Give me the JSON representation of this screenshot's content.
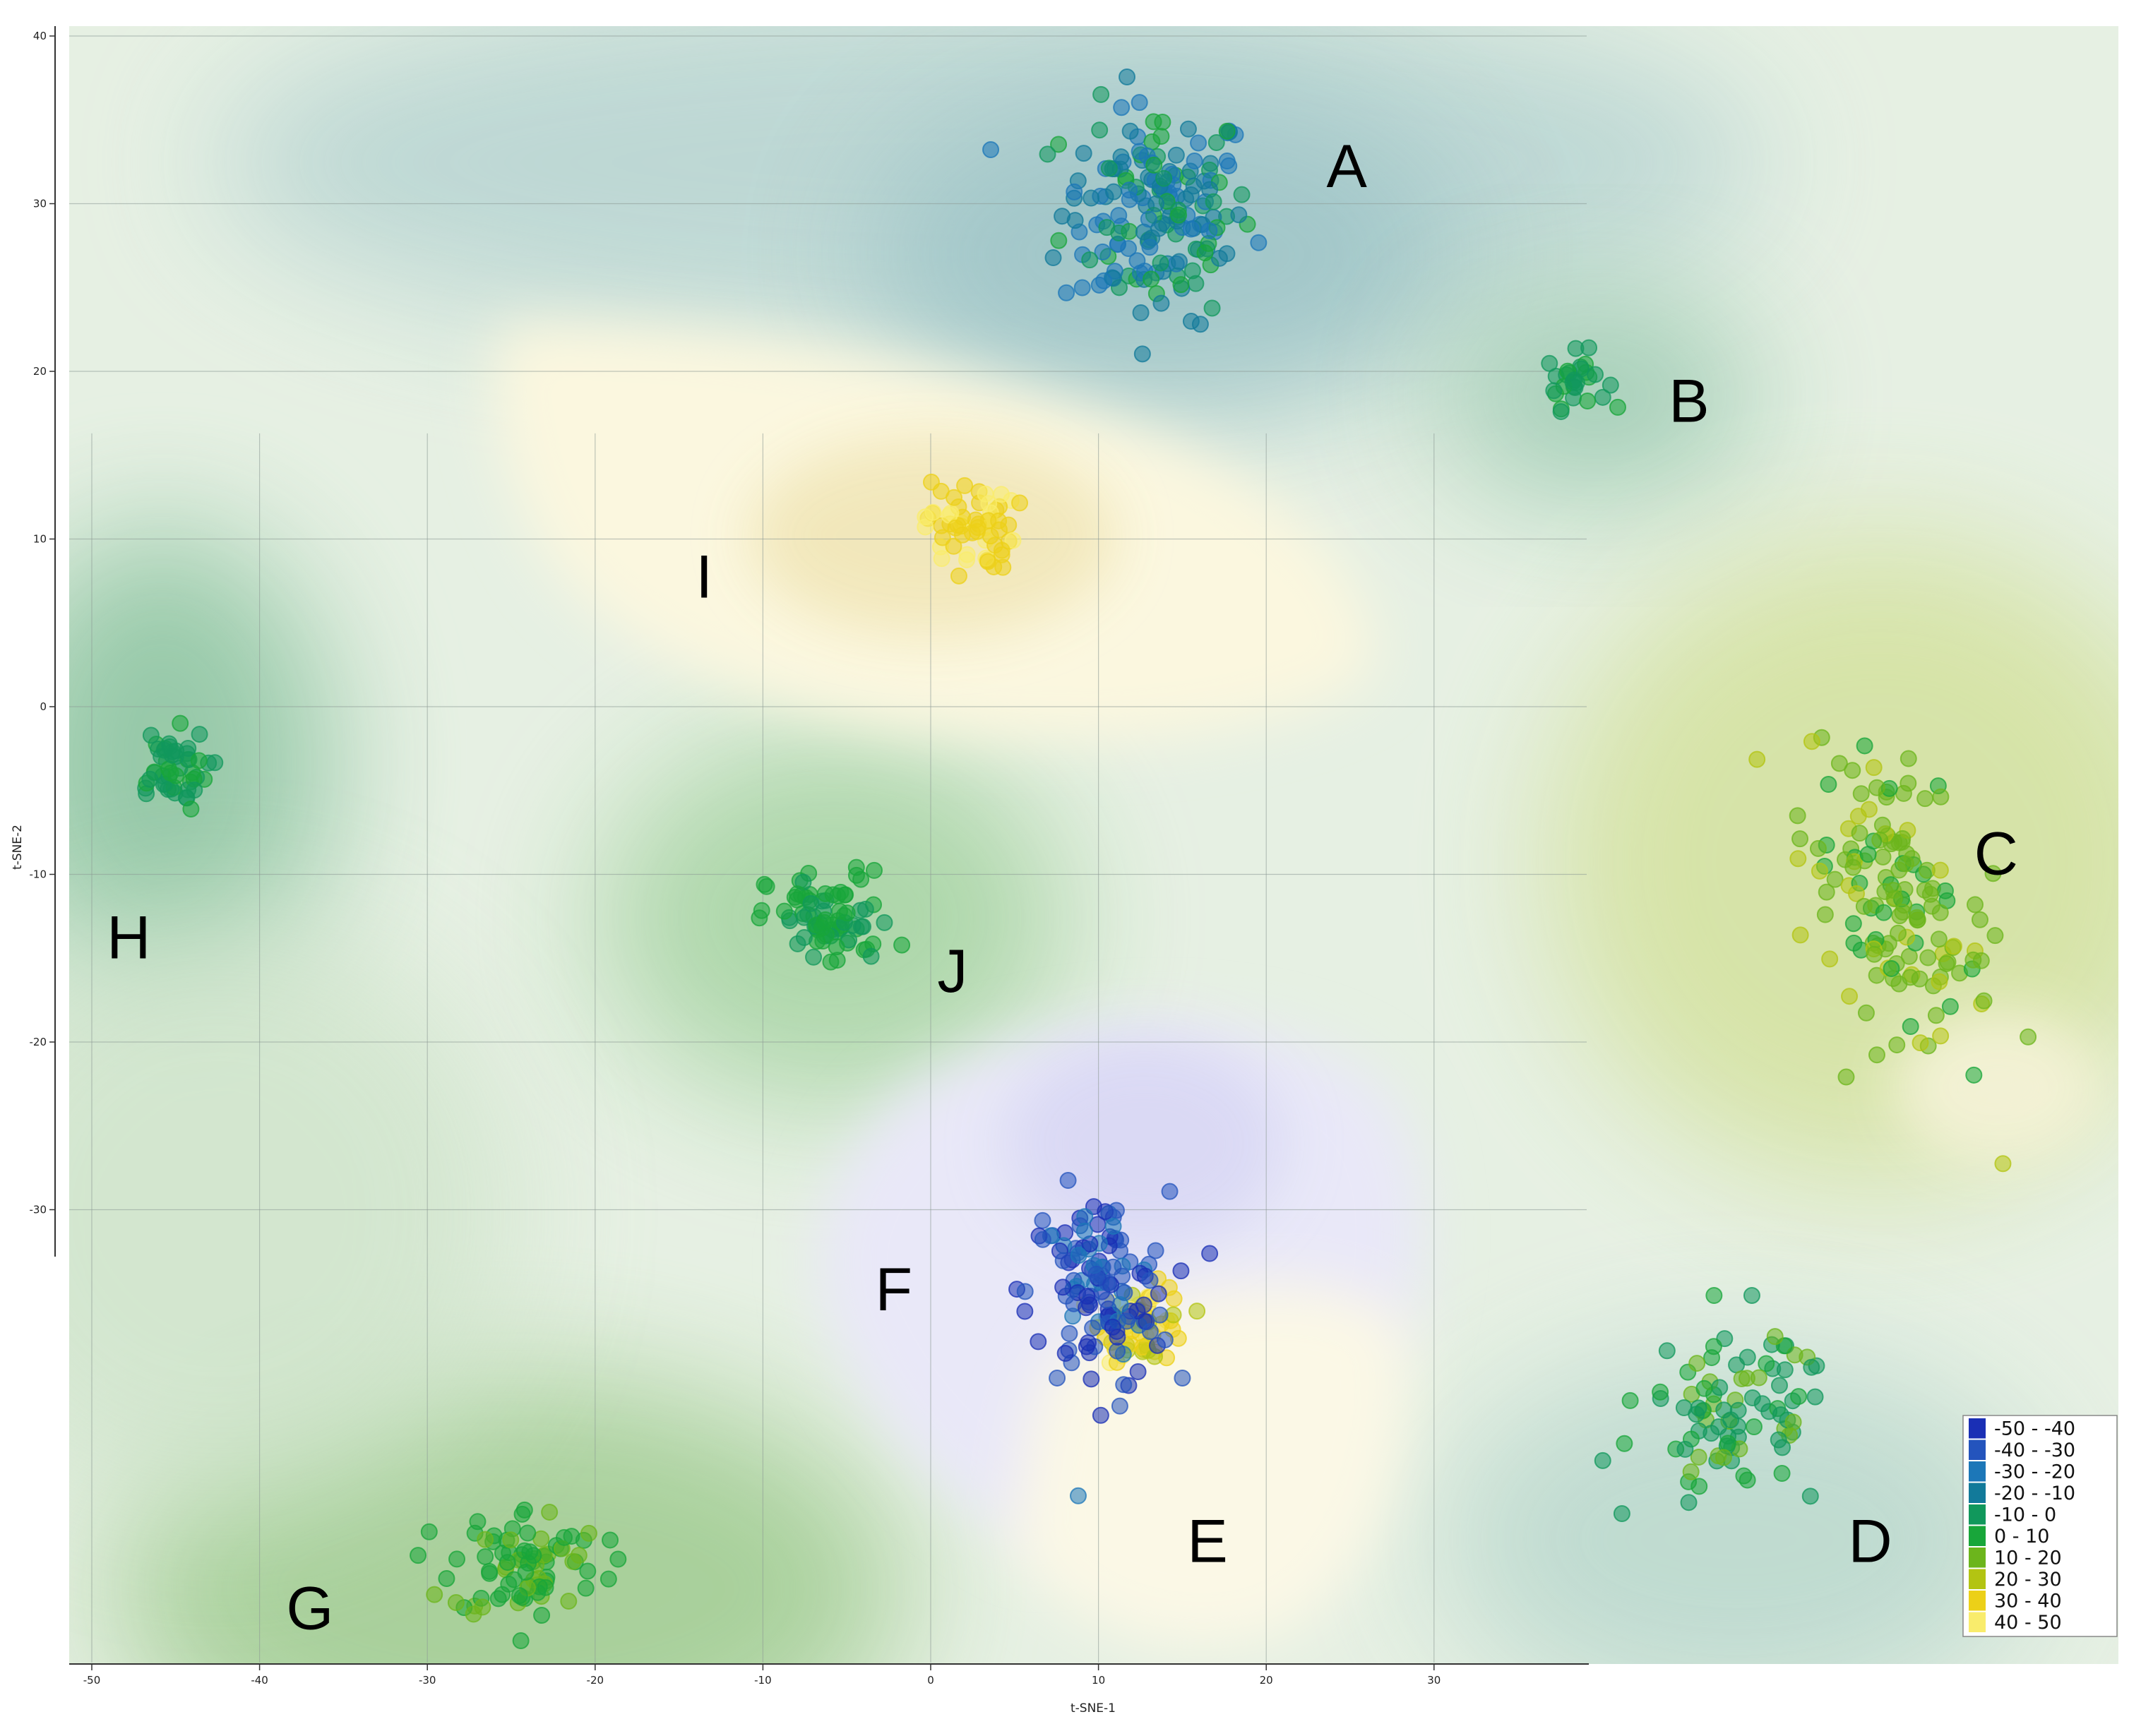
{
  "chart_data": {
    "type": "scatter",
    "title": "",
    "xlabel": "t-SNE-1",
    "ylabel": "t-SNE-2",
    "xlim": [
      -51,
      40
    ],
    "ylim": [
      -57,
      40
    ],
    "x_ticks": [
      "-50",
      "-40",
      "-30",
      "-20",
      "-10",
      "0",
      "10",
      "20",
      "30"
    ],
    "y_ticks": [
      "40",
      "30",
      "20",
      "10",
      "0",
      "-10",
      "-20",
      "-30"
    ],
    "grid": true,
    "colors": {
      "-50 - -40": "#1a2fb5",
      "-40 - -30": "#2454bd",
      "-30 - -20": "#1c77b8",
      "-20 - -10": "#127a9a",
      "-10 - 0": "#11985c",
      "0 - 10": "#18a63a",
      "10 - 20": "#6cb51c",
      "20 - 30": "#b3c412",
      "30 - 40": "#ecd018",
      "40 - 50": "#f9ec6c"
    },
    "legend": {
      "position": "bottom-right",
      "entries": [
        "-50 - -40",
        "-40 - -30",
        "-30 - -20",
        "-20 - -10",
        "-10 - 0",
        "0 - 10",
        "10 - 20",
        "20 - 30",
        "30 - 40",
        "40 - 50"
      ]
    },
    "clusters": [
      {
        "label": "A",
        "center": [
          13.5,
          29.5
        ],
        "spread": [
          3.8,
          4.3
        ],
        "n": 180,
        "color_bins": [
          "-20 - -10",
          "-30 - -20",
          "-10 - 0",
          "-20 - -10",
          "-30 - -20",
          "0 - 10"
        ],
        "label_pos": [
          24.8,
          31
        ]
      },
      {
        "label": "B",
        "center": [
          38.5,
          19.5
        ],
        "spread": [
          1.2,
          1.1
        ],
        "n": 28,
        "color_bins": [
          "-10 - 0",
          "0 - 10",
          "-10 - 0"
        ],
        "label_pos": [
          45.2,
          17
        ]
      },
      {
        "label": "C",
        "center": [
          57.5,
          -11.5
        ],
        "spread": [
          3.8,
          5.2
        ],
        "n": 150,
        "color_bins": [
          "10 - 20",
          "20 - 30",
          "10 - 20",
          "0 - 10",
          "10 - 20"
        ],
        "label_pos": [
          63.5,
          -10
        ]
      },
      {
        "label": "D",
        "center": [
          48.0,
          -42.5
        ],
        "spread": [
          4.0,
          3.5
        ],
        "n": 90,
        "color_bins": [
          "-10 - 0",
          "0 - 10",
          "-10 - 0",
          "10 - 20"
        ],
        "label_pos": [
          56,
          -51
        ]
      },
      {
        "label": "E",
        "center": [
          12.8,
          -36.8
        ],
        "spread": [
          1.7,
          1.5
        ],
        "n": 60,
        "color_bins": [
          "30 - 40",
          "40 - 50",
          "30 - 40",
          "20 - 30"
        ],
        "label_pos": [
          16.5,
          -51
        ]
      },
      {
        "label": "F",
        "center": [
          10.0,
          -35.0
        ],
        "spread": [
          2.8,
          4.0
        ],
        "n": 130,
        "color_bins": [
          "-50 - -40",
          "-40 - -30",
          "-50 - -40",
          "-40 - -30",
          "-30 - -20"
        ],
        "label_pos": [
          -2.2,
          -36
        ]
      },
      {
        "label": "G",
        "center": [
          -24.0,
          -51.0
        ],
        "spread": [
          3.0,
          2.2
        ],
        "n": 85,
        "color_bins": [
          "0 - 10",
          "10 - 20",
          "0 - 10"
        ],
        "label_pos": [
          -37,
          -55
        ]
      },
      {
        "label": "H",
        "center": [
          -45.5,
          -3.8
        ],
        "spread": [
          1.6,
          1.6
        ],
        "n": 50,
        "color_bins": [
          "-10 - 0",
          "0 - 10",
          "-10 - 0"
        ],
        "label_pos": [
          -47.8,
          -15
        ]
      },
      {
        "label": "I",
        "center": [
          2.3,
          10.8
        ],
        "spread": [
          1.8,
          1.8
        ],
        "n": 60,
        "color_bins": [
          "30 - 40",
          "40 - 50",
          "30 - 40"
        ],
        "label_pos": [
          -13.5,
          6.5
        ]
      },
      {
        "label": "J",
        "center": [
          -6.0,
          -12.8
        ],
        "spread": [
          2.5,
          2.0
        ],
        "n": 80,
        "color_bins": [
          "0 - 10",
          "-10 - 0",
          "0 - 10"
        ],
        "label_pos": [
          1.3,
          -17
        ]
      }
    ]
  }
}
